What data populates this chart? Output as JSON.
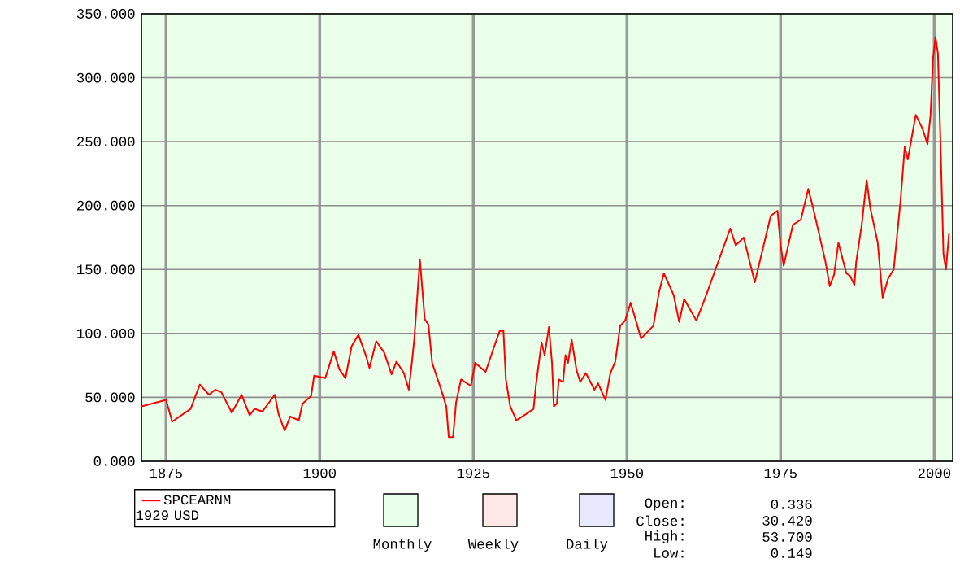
{
  "chart_data": {
    "type": "line",
    "xlim": [
      1871,
      2003
    ],
    "ylim": [
      0,
      350
    ],
    "xticks": [
      1875,
      1900,
      1925,
      1950,
      1975,
      2000
    ],
    "yticks": [
      {
        "value": 0,
        "label": "0.000"
      },
      {
        "value": 50,
        "label": "50.000"
      },
      {
        "value": 100,
        "label": "100.000"
      },
      {
        "value": 150,
        "label": "150.000"
      },
      {
        "value": 200,
        "label": "200.000"
      },
      {
        "value": 250,
        "label": "250.000"
      },
      {
        "value": 300,
        "label": "300.000"
      },
      {
        "value": 350,
        "label": "350.000"
      }
    ],
    "grid": true,
    "legend": "bottom left",
    "marker": "none",
    "line_style": "solid",
    "series": [
      {
        "name": "SPCEARNM",
        "color": "#ff0000",
        "x": [
          1871.0,
          1875.0,
          1876.0,
          1879.0,
          1880.5,
          1882.0,
          1883.0,
          1884.0,
          1885.7,
          1887.3,
          1888.6,
          1889.4,
          1890.7,
          1892.7,
          1893.3,
          1894.3,
          1895.2,
          1896.6,
          1897.2,
          1898.6,
          1899.1,
          1900.9,
          1902.3,
          1903.2,
          1904.2,
          1905.2,
          1906.3,
          1907.5,
          1908.1,
          1909.2,
          1910.5,
          1911.7,
          1912.5,
          1913.7,
          1914.5,
          1915.0,
          1915.4,
          1916.3,
          1917.1,
          1917.7,
          1918.3,
          1919.7,
          1920.6,
          1921.0,
          1921.7,
          1922.2,
          1923.0,
          1924.6,
          1925.3,
          1927.0,
          1928.2,
          1929.3,
          1929.9,
          1930.3,
          1931.0,
          1932.0,
          1933.6,
          1934.8,
          1935.2,
          1936.1,
          1936.6,
          1937.3,
          1937.8,
          1938.1,
          1938.6,
          1938.9,
          1939.6,
          1940.0,
          1940.4,
          1941.0,
          1941.8,
          1942.4,
          1943.3,
          1944.7,
          1945.3,
          1946.5,
          1947.3,
          1948.1,
          1948.9,
          1949.7,
          1950.6,
          1952.3,
          1954.3,
          1955.2,
          1956.0,
          1957.6,
          1958.5,
          1959.3,
          1961.3,
          1962.9,
          1966.8,
          1967.7,
          1969.0,
          1970.8,
          1973.4,
          1974.5,
          1975.0,
          1975.5,
          1977.0,
          1978.3,
          1979.5,
          1980.3,
          1981.3,
          1982.3,
          1983.0,
          1983.7,
          1984.4,
          1985.7,
          1986.3,
          1987.0,
          1987.3,
          1988.2,
          1989.0,
          1989.6,
          1990.8,
          1991.6,
          1992.5,
          1993.4,
          1994.5,
          1995.2,
          1995.7,
          1996.4,
          1997.0,
          1998.1,
          1998.9,
          1999.4,
          1999.8,
          2000.2,
          2000.6,
          2001.0,
          2001.3,
          2001.5,
          2001.9,
          2002.4
        ],
        "values": [
          43,
          48,
          31,
          41,
          60,
          52,
          56,
          54,
          38,
          52,
          36,
          41,
          39,
          52,
          37,
          24,
          35,
          32,
          45,
          51,
          67,
          65,
          86,
          72,
          65,
          90,
          99,
          83,
          73,
          94,
          85,
          68,
          78,
          69,
          56,
          77,
          96,
          158,
          111,
          107,
          77,
          57,
          43,
          19,
          19,
          46,
          64,
          59,
          77,
          70,
          87,
          102,
          102,
          64,
          43,
          32,
          37,
          41,
          60,
          93,
          83,
          105,
          77,
          43,
          45,
          64,
          62,
          83,
          77,
          95,
          71,
          62,
          69,
          56,
          61,
          48,
          69,
          78,
          106,
          110,
          124,
          96,
          106,
          132,
          147,
          130,
          109,
          127,
          110,
          130,
          182,
          169,
          175,
          140,
          192,
          196,
          169,
          153,
          185,
          189,
          213,
          198,
          177,
          156,
          137,
          146,
          171,
          147,
          145,
          138,
          156,
          185,
          220,
          198,
          171,
          128,
          143,
          150,
          203,
          246,
          236,
          255,
          271,
          260,
          248,
          271,
          315,
          332,
          319,
          252,
          198,
          162,
          150,
          178
        ]
      }
    ],
    "annotations": [
      "1929 USD",
      "Monthly",
      "Weekly",
      "Daily",
      "Open:",
      "Close:",
      "High:",
      "Low:",
      "0.336",
      "30.420",
      "53.700",
      "0.149"
    ]
  }
}
